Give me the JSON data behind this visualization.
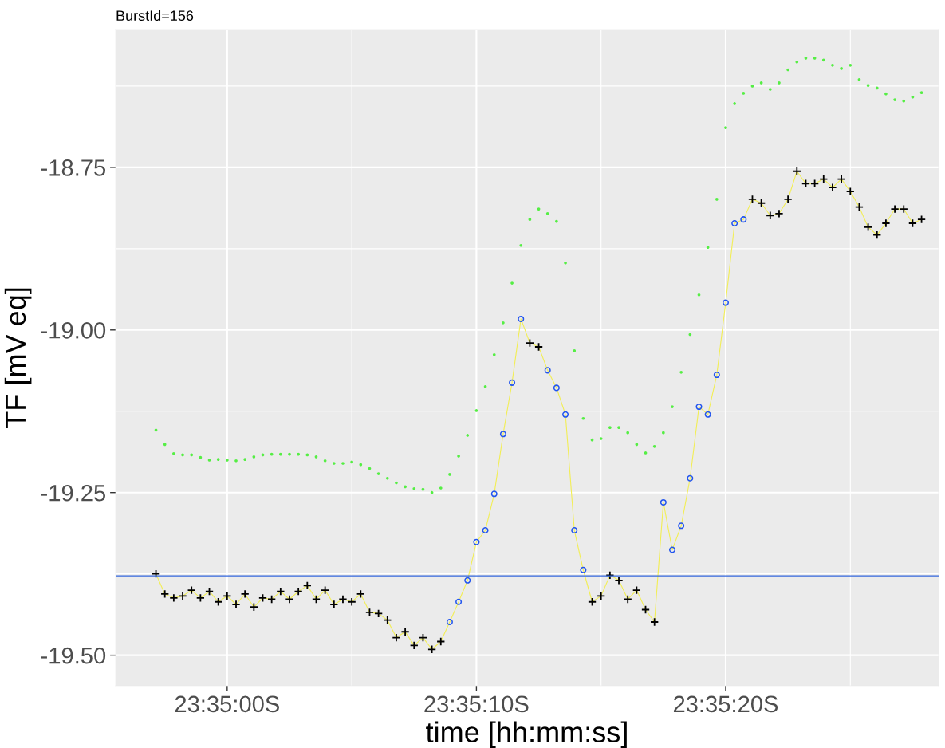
{
  "chart_data": {
    "type": "line",
    "title": "BurstId=156",
    "xlabel": "time [hh:mm:ss]",
    "ylabel": "TF [mV eq]",
    "categories": [
      null,
      null,
      null,
      null,
      null,
      null,
      null,
      null,
      "23:35:00S",
      null,
      null,
      null,
      null,
      null,
      null,
      null,
      null,
      null,
      null,
      null,
      null,
      null,
      null,
      null,
      null,
      null,
      null,
      null,
      null,
      null,
      null,
      null,
      null,
      null,
      null,
      null,
      "23:35:10S",
      null,
      null,
      null,
      null,
      null,
      null,
      null,
      null,
      null,
      null,
      null,
      null,
      null,
      null,
      null,
      null,
      null,
      null,
      null,
      null,
      null,
      null,
      null,
      null,
      null,
      null,
      null,
      "23:35:20S",
      null,
      null,
      null,
      null,
      null,
      null,
      null,
      null,
      null,
      null,
      null,
      null,
      null,
      null,
      null,
      null,
      null,
      null,
      null,
      null,
      null,
      null
    ],
    "series": [
      {
        "type": "scatter",
        "marker": "circle",
        "color": "#55ee44",
        "values": [
          -19.154,
          -19.176,
          -19.19,
          -19.192,
          -19.192,
          -19.196,
          -19.2,
          -19.199,
          -19.2,
          -19.201,
          -19.199,
          -19.195,
          -19.192,
          -19.191,
          -19.191,
          -19.191,
          -19.191,
          -19.192,
          -19.195,
          -19.201,
          -19.205,
          -19.205,
          -19.203,
          -19.207,
          -19.213,
          -19.221,
          -19.228,
          -19.235,
          -19.241,
          -19.244,
          -19.245,
          -19.25,
          -19.243,
          -19.222,
          -19.194,
          -19.162,
          -19.124,
          -19.087,
          -19.038,
          -18.989,
          -18.928,
          -18.87,
          -18.83,
          -18.814,
          -18.821,
          -18.833,
          -18.897,
          -19.032,
          -19.136,
          -19.169,
          -19.167,
          -19.15,
          -19.15,
          -19.158,
          -19.176,
          -19.189,
          -19.179,
          -19.158,
          -19.118,
          -19.065,
          -19.007,
          -18.946,
          -18.873,
          -18.799,
          -18.689,
          -18.652,
          -18.636,
          -18.625,
          -18.62,
          -18.63,
          -18.62,
          -18.6,
          -18.588,
          -18.582,
          -18.582,
          -18.585,
          -18.593,
          -18.598,
          -18.593,
          -18.615,
          -18.624,
          -18.628,
          -18.637,
          -18.646,
          -18.648,
          -18.642,
          -18.635
        ]
      },
      {
        "marker": "none",
        "color": "#f2ee55",
        "values": [
          -19.375,
          -19.406,
          -19.412,
          -19.409,
          -19.4,
          -19.412,
          -19.402,
          -19.418,
          -19.409,
          -19.422,
          -19.406,
          -19.426,
          -19.412,
          -19.414,
          -19.402,
          -19.414,
          -19.402,
          -19.393,
          -19.414,
          -19.4,
          -19.422,
          -19.414,
          -19.418,
          -19.406,
          -19.434,
          -19.436,
          -19.446,
          -19.473,
          -19.464,
          -19.485,
          -19.473,
          -19.491,
          -19.479,
          -19.449,
          -19.418,
          -19.385,
          -19.326,
          -19.308,
          -19.252,
          -19.16,
          -19.081,
          -18.983,
          -19.02,
          -19.026,
          -19.062,
          -19.089,
          -19.13,
          -19.308,
          -19.369,
          -19.418,
          -19.409,
          -19.377,
          -19.385,
          -19.414,
          -19.4,
          -19.43,
          -19.449,
          -19.265,
          -19.338,
          -19.301,
          -19.228,
          -19.118,
          -19.13,
          -19.069,
          -18.958,
          -18.836,
          -18.83,
          -18.799,
          -18.805,
          -18.824,
          -18.821,
          -18.799,
          -18.756,
          -18.775,
          -18.775,
          -18.768,
          -18.781,
          -18.768,
          -18.787,
          -18.811,
          -18.842,
          -18.854,
          -18.836,
          -18.814,
          -18.814,
          -18.836,
          -18.83
        ]
      },
      {
        "type": "scatter",
        "marker": "circle",
        "color": "#2255ee",
        "values": [
          null,
          null,
          null,
          null,
          null,
          null,
          null,
          null,
          null,
          null,
          null,
          null,
          null,
          null,
          null,
          null,
          null,
          null,
          null,
          null,
          null,
          null,
          null,
          null,
          null,
          null,
          null,
          null,
          null,
          null,
          null,
          null,
          null,
          -19.449,
          -19.418,
          -19.385,
          -19.326,
          -19.308,
          -19.252,
          -19.16,
          -19.081,
          -18.983,
          null,
          null,
          -19.062,
          -19.089,
          -19.13,
          -19.308,
          -19.369,
          null,
          null,
          null,
          null,
          null,
          null,
          null,
          null,
          -19.265,
          -19.338,
          -19.301,
          -19.228,
          -19.118,
          -19.13,
          -19.069,
          -18.958,
          -18.836,
          -18.83,
          null,
          null,
          null,
          null,
          null,
          null,
          null,
          null,
          null,
          null,
          null,
          null,
          null,
          null,
          null,
          null,
          null,
          null,
          null,
          null
        ]
      },
      {
        "type": "scatter",
        "marker": "cross",
        "color": "#000000",
        "values": [
          -19.375,
          -19.406,
          -19.412,
          -19.409,
          -19.4,
          -19.412,
          -19.402,
          -19.418,
          -19.409,
          -19.422,
          -19.406,
          -19.426,
          -19.412,
          -19.414,
          -19.402,
          -19.414,
          -19.402,
          -19.393,
          -19.414,
          -19.4,
          -19.422,
          -19.414,
          -19.418,
          -19.406,
          -19.434,
          -19.436,
          -19.446,
          -19.473,
          -19.464,
          -19.485,
          -19.473,
          -19.491,
          -19.479,
          null,
          null,
          null,
          null,
          null,
          null,
          null,
          null,
          null,
          -19.02,
          -19.026,
          null,
          null,
          null,
          null,
          null,
          -19.418,
          -19.409,
          -19.377,
          -19.385,
          -19.414,
          -19.4,
          -19.43,
          -19.449,
          null,
          null,
          null,
          null,
          null,
          null,
          null,
          null,
          null,
          null,
          -18.799,
          -18.805,
          -18.824,
          -18.821,
          -18.799,
          -18.756,
          -18.775,
          -18.775,
          -18.768,
          -18.781,
          -18.768,
          -18.787,
          -18.811,
          -18.842,
          -18.854,
          -18.836,
          -18.814,
          -18.814,
          -18.836,
          -18.83
        ]
      }
    ],
    "ylim": [
      -19.547,
      -18.538
    ],
    "yticks": [
      {
        "value": -19.5,
        "label": "-19.50"
      },
      {
        "value": -19.375,
        "label": null
      },
      {
        "value": -19.25,
        "label": "-19.25"
      },
      {
        "value": -19.125,
        "label": null
      },
      {
        "value": -19.0,
        "label": "-19.00"
      },
      {
        "value": -18.875,
        "label": null
      },
      {
        "value": -18.75,
        "label": "-18.75"
      },
      {
        "value": -18.625,
        "label": null
      }
    ],
    "ref_lines": [
      {
        "axis": "y",
        "value": -19.378,
        "color": "#3366dd",
        "line_style": "solid"
      }
    ],
    "grid": true
  }
}
